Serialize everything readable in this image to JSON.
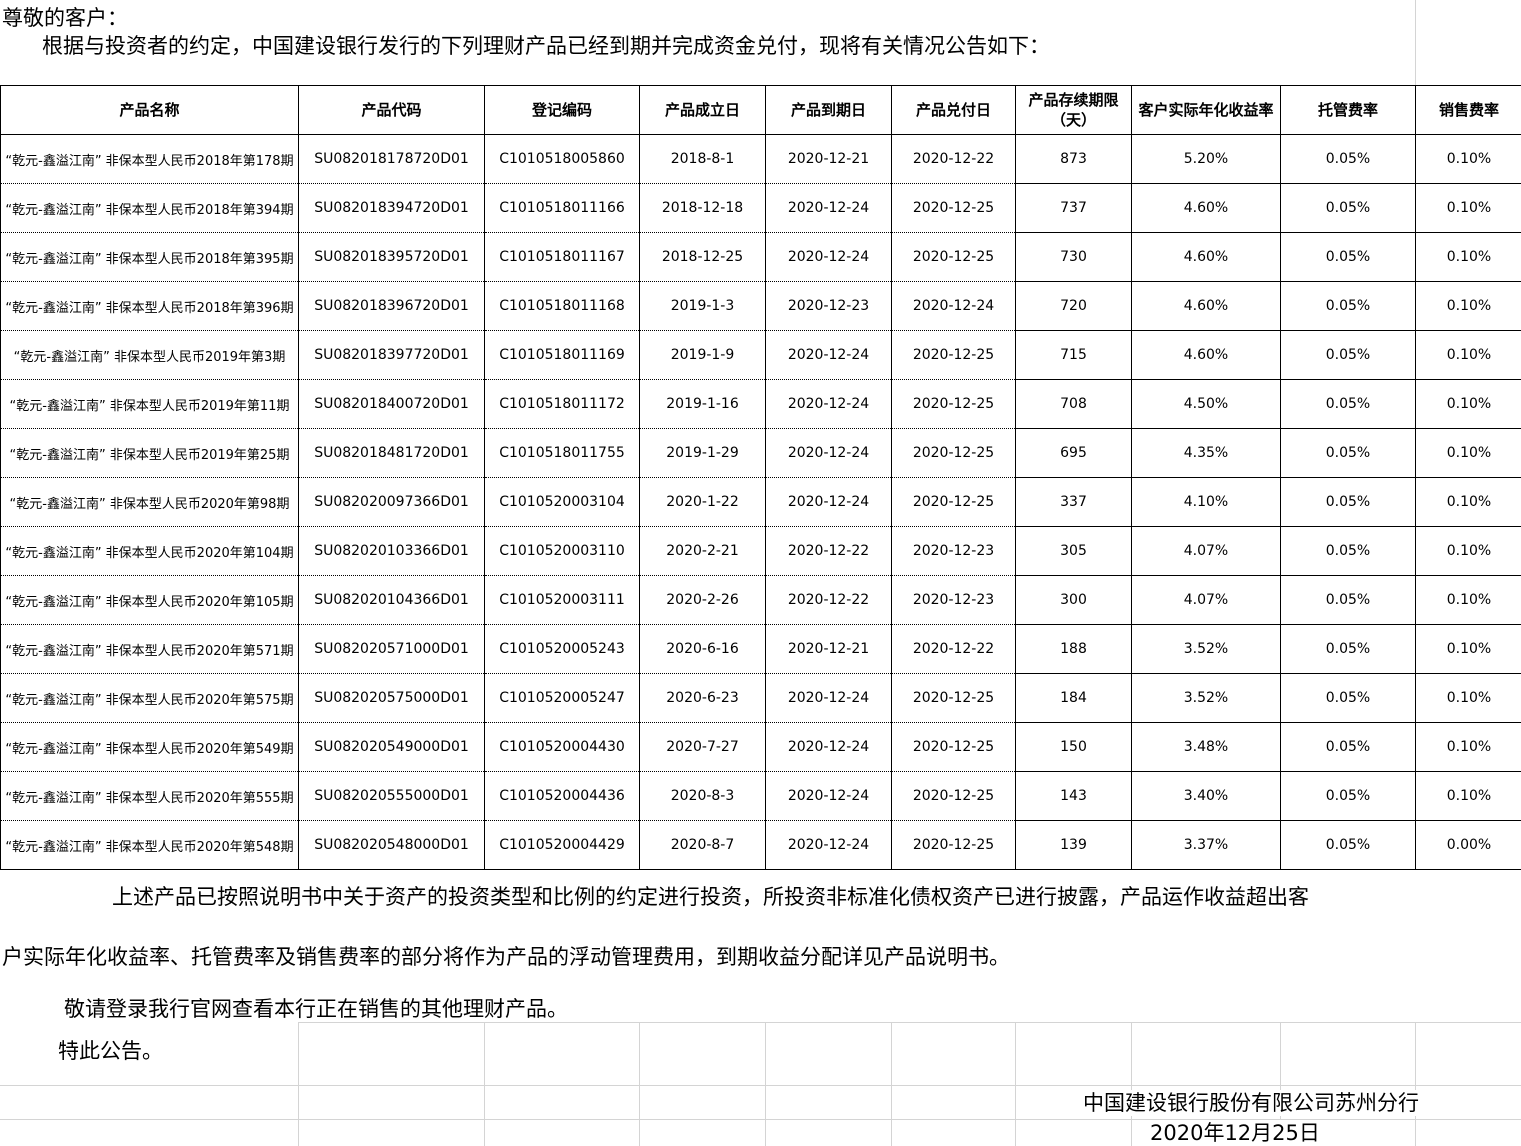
{
  "page": {
    "greeting": "尊敬的客户：",
    "intro": "根据与投资者的约定，中国建设银行发行的下列理财产品已经到期并完成资金兑付，现将有关情况公告如下："
  },
  "table": {
    "headers": [
      "产品名称",
      "产品代码",
      "登记编码",
      "产品成立日",
      "产品到期日",
      "产品兑付日",
      "产品存续期限（天）",
      "客户实际年化收益率",
      "托管费率",
      "销售费率"
    ],
    "rows": [
      [
        "“乾元-鑫溢江南” 非保本型人民币2018年第178期",
        "SU082018178720D01",
        "C1010518005860",
        "2018-8-1",
        "2020-12-21",
        "2020-12-22",
        "873",
        "5.20%",
        "0.05%",
        "0.10%"
      ],
      [
        "“乾元-鑫溢江南” 非保本型人民币2018年第394期",
        "SU082018394720D01",
        "C1010518011166",
        "2018-12-18",
        "2020-12-24",
        "2020-12-25",
        "737",
        "4.60%",
        "0.05%",
        "0.10%"
      ],
      [
        "“乾元-鑫溢江南” 非保本型人民币2018年第395期",
        "SU082018395720D01",
        "C1010518011167",
        "2018-12-25",
        "2020-12-24",
        "2020-12-25",
        "730",
        "4.60%",
        "0.05%",
        "0.10%"
      ],
      [
        "“乾元-鑫溢江南” 非保本型人民币2018年第396期",
        "SU082018396720D01",
        "C1010518011168",
        "2019-1-3",
        "2020-12-23",
        "2020-12-24",
        "720",
        "4.60%",
        "0.05%",
        "0.10%"
      ],
      [
        "“乾元-鑫溢江南” 非保本型人民币2019年第3期",
        "SU082018397720D01",
        "C1010518011169",
        "2019-1-9",
        "2020-12-24",
        "2020-12-25",
        "715",
        "4.60%",
        "0.05%",
        "0.10%"
      ],
      [
        "“乾元-鑫溢江南” 非保本型人民币2019年第11期",
        "SU082018400720D01",
        "C1010518011172",
        "2019-1-16",
        "2020-12-24",
        "2020-12-25",
        "708",
        "4.50%",
        "0.05%",
        "0.10%"
      ],
      [
        "“乾元-鑫溢江南” 非保本型人民币2019年第25期",
        "SU082018481720D01",
        "C1010518011755",
        "2019-1-29",
        "2020-12-24",
        "2020-12-25",
        "695",
        "4.35%",
        "0.05%",
        "0.10%"
      ],
      [
        "“乾元-鑫溢江南” 非保本型人民币2020年第98期",
        "SU082020097366D01",
        "C1010520003104",
        "2020-1-22",
        "2020-12-24",
        "2020-12-25",
        "337",
        "4.10%",
        "0.05%",
        "0.10%"
      ],
      [
        "“乾元-鑫溢江南” 非保本型人民币2020年第104期",
        "SU082020103366D01",
        "C1010520003110",
        "2020-2-21",
        "2020-12-22",
        "2020-12-23",
        "305",
        "4.07%",
        "0.05%",
        "0.10%"
      ],
      [
        "“乾元-鑫溢江南” 非保本型人民币2020年第105期",
        "SU082020104366D01",
        "C1010520003111",
        "2020-2-26",
        "2020-12-22",
        "2020-12-23",
        "300",
        "4.07%",
        "0.05%",
        "0.10%"
      ],
      [
        "“乾元-鑫溢江南” 非保本型人民币2020年第571期",
        "SU082020571000D01",
        "C1010520005243",
        "2020-6-16",
        "2020-12-21",
        "2020-12-22",
        "188",
        "3.52%",
        "0.05%",
        "0.10%"
      ],
      [
        "“乾元-鑫溢江南” 非保本型人民币2020年第575期",
        "SU082020575000D01",
        "C1010520005247",
        "2020-6-23",
        "2020-12-24",
        "2020-12-25",
        "184",
        "3.52%",
        "0.05%",
        "0.10%"
      ],
      [
        "“乾元-鑫溢江南” 非保本型人民币2020年第549期",
        "SU082020549000D01",
        "C1010520004430",
        "2020-7-27",
        "2020-12-24",
        "2020-12-25",
        "150",
        "3.48%",
        "0.05%",
        "0.10%"
      ],
      [
        "“乾元-鑫溢江南” 非保本型人民币2020年第555期",
        "SU082020555000D01",
        "C1010520004436",
        "2020-8-3",
        "2020-12-24",
        "2020-12-25",
        "143",
        "3.40%",
        "0.05%",
        "0.10%"
      ],
      [
        "“乾元-鑫溢江南” 非保本型人民币2020年第548期",
        "SU082020548000D01",
        "C1010520004429",
        "2020-8-7",
        "2020-12-24",
        "2020-12-25",
        "139",
        "3.37%",
        "0.05%",
        "0.00%"
      ]
    ]
  },
  "footer": {
    "para1_line1": "上述产品已按照说明书中关于资产的投资类型和比例的约定进行投资，所投资非标准化债权资产已进行披露，产品运作收益超出客",
    "para1_line2": "户实际年化收益率、托管费率及销售费率的部分将作为产品的浮动管理费用，到期收益分配详见产品说明书。",
    "para2": "敬请登录我行官网查看本行正在销售的其他理财产品。",
    "para3": "特此公告。",
    "signature": "中国建设银行股份有限公司苏州分行",
    "date": "2020年12月25日"
  }
}
